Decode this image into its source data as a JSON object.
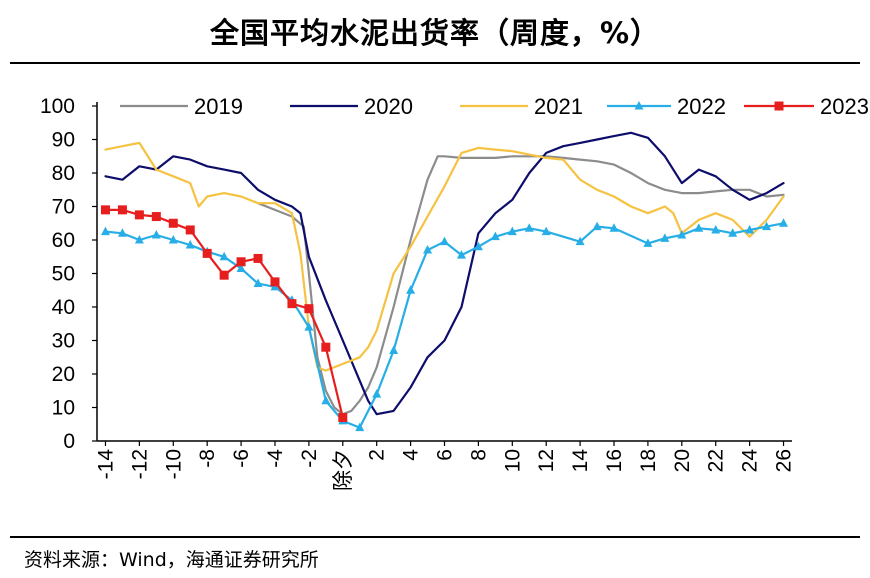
{
  "title": "全国平均水泥出货率（周度，%）",
  "source": "资料来源：Wind，海通证券研究所",
  "chart_data": {
    "type": "line",
    "title": "全国平均水泥出货率（周度，%）",
    "xlabel": "",
    "ylabel": "",
    "ylim": [
      0,
      100
    ],
    "yticks": [
      0,
      10,
      20,
      30,
      40,
      50,
      60,
      70,
      80,
      90,
      100
    ],
    "xlim": [
      -14.5,
      26.5
    ],
    "xticks": [
      {
        "x": -14,
        "label": "-14"
      },
      {
        "x": -12,
        "label": "-12"
      },
      {
        "x": -10,
        "label": "-10"
      },
      {
        "x": -8,
        "label": "-8"
      },
      {
        "x": -6,
        "label": "-6"
      },
      {
        "x": -4,
        "label": "-4"
      },
      {
        "x": -2,
        "label": "-2"
      },
      {
        "x": 0,
        "label": "除夕"
      },
      {
        "x": 2,
        "label": "2"
      },
      {
        "x": 4,
        "label": "4"
      },
      {
        "x": 6,
        "label": "6"
      },
      {
        "x": 8,
        "label": "8"
      },
      {
        "x": 10,
        "label": "10"
      },
      {
        "x": 12,
        "label": "12"
      },
      {
        "x": 14,
        "label": "14"
      },
      {
        "x": 16,
        "label": "16"
      },
      {
        "x": 18,
        "label": "18"
      },
      {
        "x": 20,
        "label": "20"
      },
      {
        "x": 22,
        "label": "22"
      },
      {
        "x": 24,
        "label": "24"
      },
      {
        "x": 26,
        "label": "26"
      }
    ],
    "grid": false,
    "legend_position": "top",
    "series": [
      {
        "name": "2019",
        "color": "#8c8c8c",
        "marker": "none",
        "x": [
          -5,
          -4,
          -3,
          -2.3,
          -2,
          -1.5,
          -1,
          -0.5,
          0,
          0.5,
          1,
          1.5,
          2,
          3,
          4,
          5,
          5.6,
          6,
          7,
          8,
          9,
          10,
          11,
          12,
          13,
          14,
          15,
          16,
          17,
          18,
          19,
          20,
          21,
          22,
          23,
          24,
          25,
          26
        ],
        "y": [
          71,
          69,
          67,
          64,
          50,
          25,
          15,
          10,
          8,
          9,
          12,
          16,
          22,
          40,
          60,
          78,
          85,
          85,
          84.5,
          84.5,
          84.5,
          85,
          85,
          85,
          84.5,
          84,
          83.5,
          82.5,
          80,
          77,
          75,
          74,
          74,
          74.5,
          75,
          75,
          73,
          73.5
        ]
      },
      {
        "name": "2020",
        "color": "#0d0d6b",
        "marker": "none",
        "x": [
          -14,
          -13,
          -12,
          -11,
          -10,
          -9,
          -8,
          -7,
          -6,
          -5,
          -4,
          -3,
          -2.5,
          -2,
          -1,
          0,
          1,
          1.5,
          2,
          3,
          4,
          5,
          6,
          7,
          8,
          9,
          10,
          11,
          12,
          13,
          14,
          15,
          16,
          17,
          18,
          19,
          20,
          21,
          22,
          23,
          24,
          25,
          26
        ],
        "y": [
          79,
          78,
          82,
          81,
          85,
          84,
          82,
          81,
          80,
          75,
          72,
          70,
          68,
          55,
          42,
          30,
          18,
          12,
          8,
          9,
          16,
          25,
          30,
          40,
          62,
          68,
          72,
          80,
          86,
          88,
          89,
          90,
          91,
          92,
          90.5,
          85,
          77,
          81,
          79,
          75,
          72,
          74,
          77
        ]
      },
      {
        "name": "2021",
        "color": "#f5c242",
        "marker": "none",
        "x": [
          -14,
          -13,
          -12,
          -11,
          -10,
          -9,
          -8.5,
          -8,
          -7,
          -6,
          -5,
          -4,
          -3,
          -2.5,
          -2,
          -1.5,
          -1,
          0,
          1,
          1.5,
          2,
          3,
          4,
          5,
          6,
          7,
          8,
          9,
          10,
          11,
          12,
          13,
          14,
          15,
          16,
          17,
          18,
          19,
          19.5,
          20,
          21,
          22,
          23,
          24,
          25,
          26
        ],
        "y": [
          87,
          88,
          89,
          81,
          79,
          77,
          70,
          73,
          74,
          73,
          71,
          71,
          68,
          56,
          34,
          22,
          21,
          23,
          25,
          28,
          33,
          50,
          58,
          67,
          76,
          86,
          87.5,
          87,
          86.5,
          85.5,
          84.5,
          84,
          78,
          75,
          73,
          70,
          68,
          70,
          68,
          62,
          66,
          68,
          66,
          61,
          66,
          73
        ]
      },
      {
        "name": "2022",
        "color": "#27aee6",
        "marker": "triangle",
        "x": [
          -14,
          -13,
          -12,
          -11,
          -10,
          -9,
          -8,
          -7,
          -6,
          -5,
          -4,
          -3,
          -2,
          -1,
          0,
          1,
          2,
          3,
          4,
          5,
          6,
          7,
          8,
          9,
          10,
          11,
          12,
          14,
          15,
          16,
          18,
          19,
          20,
          21,
          22,
          23,
          24,
          25,
          26
        ],
        "y": [
          62.5,
          62,
          60,
          61.5,
          60,
          58.5,
          56.5,
          55,
          51.5,
          47,
          46,
          42,
          34,
          12,
          6,
          4,
          14,
          27,
          45,
          57,
          59.5,
          55.5,
          58,
          61,
          62.5,
          63.5,
          62.5,
          59.5,
          64,
          63.5,
          59,
          60.5,
          61.5,
          63.5,
          63,
          62,
          63,
          64,
          65
        ]
      },
      {
        "name": "2023",
        "color": "#e61e1e",
        "marker": "square",
        "x": [
          -14,
          -13,
          -12,
          -11,
          -10,
          -9,
          -8,
          -7,
          -6,
          -5,
          -4,
          -3,
          -2,
          -1,
          0
        ],
        "y": [
          69,
          69,
          67.5,
          67,
          65,
          63,
          56,
          49.5,
          53.5,
          54.5,
          47.5,
          41,
          39.5,
          28,
          7
        ]
      }
    ]
  }
}
